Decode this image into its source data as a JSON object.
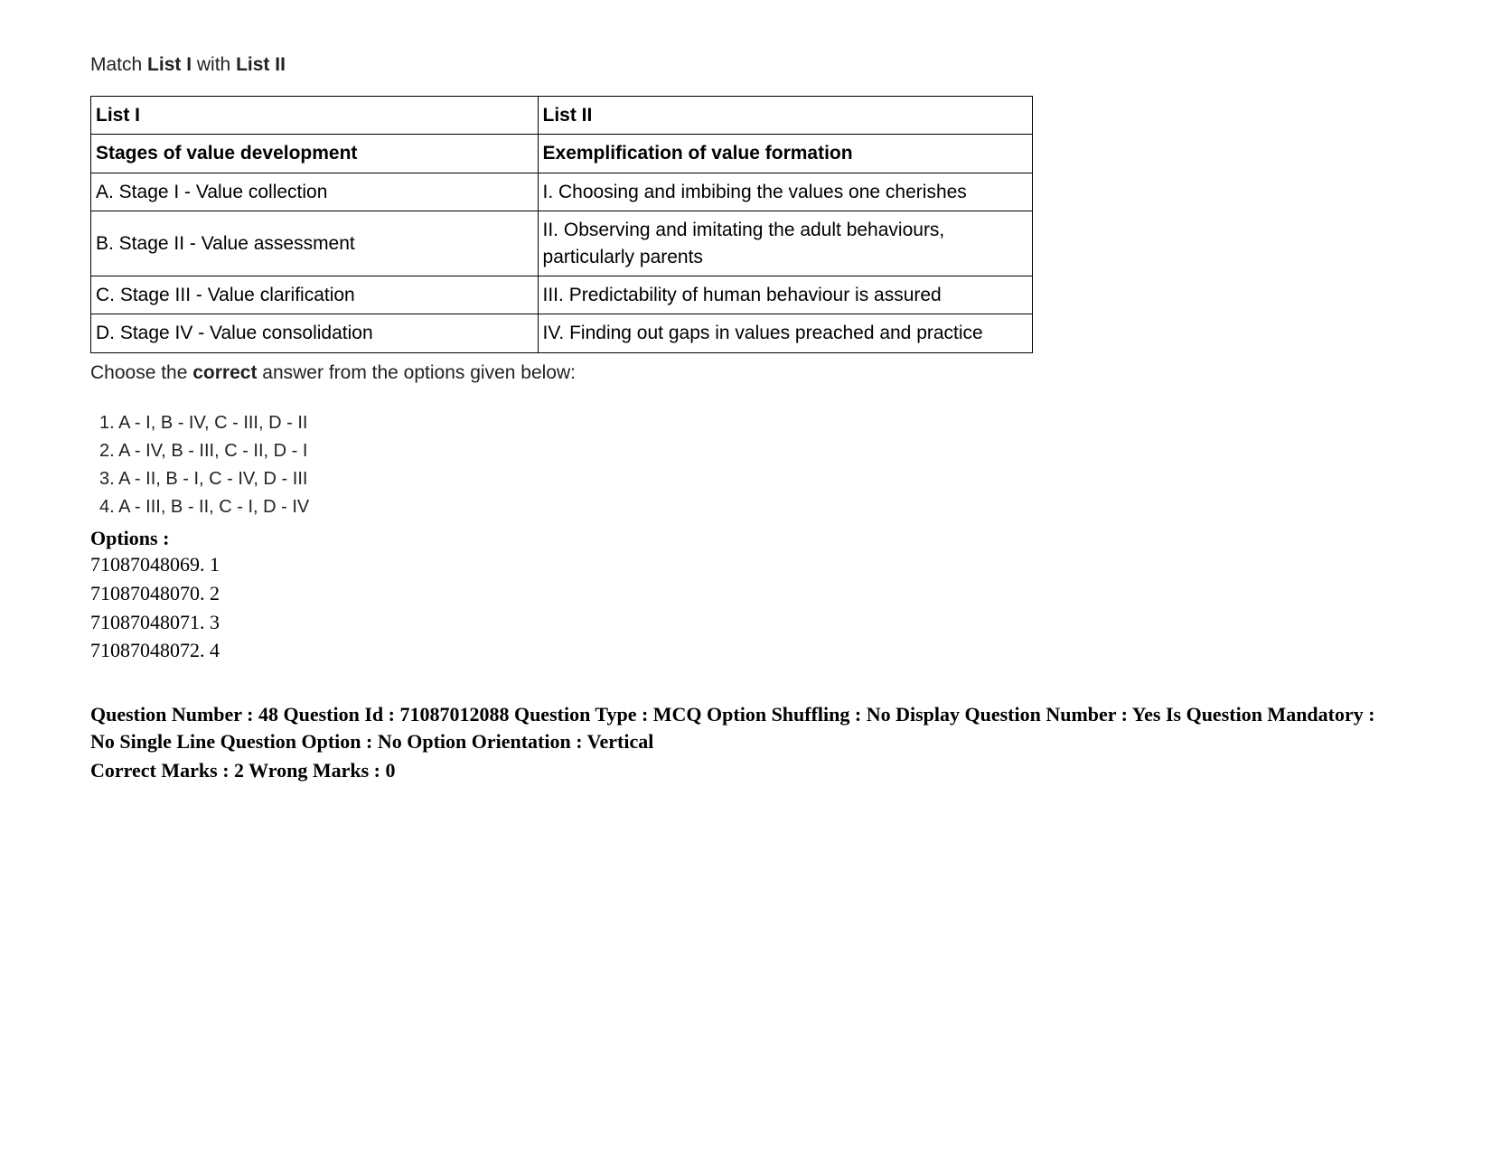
{
  "instruction": {
    "prefix": "Match ",
    "list1": "List I",
    "middle": " with ",
    "list2": "List II"
  },
  "table": {
    "header": {
      "left": "List I",
      "right": "List II"
    },
    "subheader": {
      "left": "Stages of value development",
      "right": "Exemplification of value formation"
    },
    "rows": [
      {
        "left": "A. Stage I - Value collection",
        "right": "I. Choosing and imbibing the values one cherishes"
      },
      {
        "left": "B. Stage II - Value assessment",
        "right": "II. Observing and imitating the adult behaviours, particularly parents"
      },
      {
        "left": "C. Stage III - Value clarification",
        "right": "III. Predictability of human behaviour is assured"
      },
      {
        "left": "D. Stage IV - Value consolidation",
        "right": "IV. Finding out gaps in values preached and practice"
      }
    ]
  },
  "postTable": {
    "prefix": "Choose the ",
    "bold": "correct",
    "suffix": " answer from the options given below:"
  },
  "answers": [
    "1. A - I, B - IV, C - III, D - II",
    "2. A - IV, B - III, C - II, D - I",
    "3. A - II, B - I, C - IV, D - III",
    "4. A - III, B - II, C - I, D - IV"
  ],
  "optionsHeading": "Options :",
  "options": [
    "71087048069. 1",
    "71087048070. 2",
    "71087048071. 3",
    "71087048072. 4"
  ],
  "meta": "Question Number : 48 Question Id : 71087012088 Question Type : MCQ Option Shuffling : No Display Question Number : Yes Is Question Mandatory : No Single Line Question Option : No Option Orientation : Vertical",
  "marks": "Correct Marks : 2 Wrong Marks : 0"
}
